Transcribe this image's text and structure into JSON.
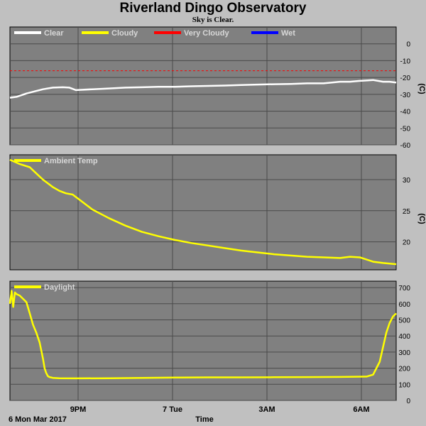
{
  "header": {
    "title": "Riverland Dingo Observatory",
    "subtitle": "Sky is Clear."
  },
  "footer": {
    "date_label": "6 Mon Mar 2017",
    "x_axis_title": "Time",
    "x_ticks": [
      "9PM",
      "7 Tue",
      "3AM",
      "6AM"
    ]
  },
  "colors": {
    "plot_background": "#808080",
    "page_background": "#c0c0c0",
    "grid": "#4a4a4a",
    "clear": "#ffffff",
    "cloudy": "#ffff00",
    "very_cloudy": "#ff0000",
    "wet": "#0000ff"
  },
  "chart_data": [
    {
      "type": "line",
      "name": "sky",
      "ylabel": "(C)",
      "ylim": [
        -60,
        10
      ],
      "y_ticks": [
        0,
        -10,
        -20,
        -30,
        -40,
        -50,
        -60
      ],
      "xlim": [
        0,
        11.7
      ],
      "legend": [
        {
          "label": "Clear",
          "color": "#ffffff"
        },
        {
          "label": "Cloudy",
          "color": "#ffff00"
        },
        {
          "label": "Very Cloudy",
          "color": "#ff0000"
        },
        {
          "label": "Wet",
          "color": "#0000ff"
        }
      ],
      "threshold": {
        "label": "Very Cloudy",
        "y": -16
      },
      "series": [
        {
          "name": "Clear",
          "color": "#ffffff",
          "x": [
            0,
            0.2,
            0.5,
            0.8,
            1.0,
            1.3,
            1.6,
            1.8,
            2.0,
            2.5,
            3.0,
            3.5,
            4.0,
            4.5,
            5.0,
            5.5,
            6.0,
            6.5,
            7.0,
            7.5,
            8.0,
            8.5,
            9.0,
            9.5,
            10.0,
            10.3,
            10.6,
            11.0,
            11.3,
            11.5,
            11.7
          ],
          "y": [
            -32,
            -31.5,
            -29.5,
            -28,
            -27,
            -26,
            -25.8,
            -26,
            -27.5,
            -27,
            -26.5,
            -26,
            -25.8,
            -25.5,
            -25.5,
            -25.2,
            -25,
            -24.8,
            -24.5,
            -24.2,
            -24,
            -23.8,
            -23.5,
            -23.5,
            -22.5,
            -22.5,
            -22,
            -21.5,
            -22.5,
            -22.5,
            -23
          ]
        }
      ]
    },
    {
      "type": "line",
      "name": "ambient",
      "ylabel": "(C)",
      "ylim": [
        15.5,
        34
      ],
      "y_ticks": [
        20,
        25,
        30
      ],
      "xlim": [
        0,
        11.7
      ],
      "legend": [
        {
          "label": "Ambient Temp",
          "color": "#ffff00"
        }
      ],
      "series": [
        {
          "name": "Ambient Temp",
          "color": "#ffff00",
          "x": [
            0,
            0.3,
            0.6,
            0.8,
            1.0,
            1.3,
            1.5,
            1.7,
            1.9,
            2.1,
            2.5,
            3.0,
            3.5,
            4.0,
            4.5,
            5.0,
            5.5,
            6.0,
            6.5,
            7.0,
            7.5,
            8.0,
            8.5,
            9.0,
            9.5,
            10.0,
            10.3,
            10.6,
            11.0,
            11.3,
            11.7
          ],
          "y": [
            33.2,
            32.5,
            32,
            31,
            30,
            28.8,
            28.2,
            27.8,
            27.6,
            26.8,
            25.2,
            23.8,
            22.6,
            21.6,
            20.9,
            20.3,
            19.8,
            19.4,
            19.0,
            18.6,
            18.3,
            18.0,
            17.8,
            17.6,
            17.5,
            17.4,
            17.6,
            17.5,
            16.8,
            16.6,
            16.4
          ]
        }
      ]
    },
    {
      "type": "line",
      "name": "daylight",
      "ylim": [
        0,
        740
      ],
      "y_ticks": [
        0,
        100,
        200,
        300,
        400,
        500,
        600,
        700
      ],
      "xlim": [
        0,
        11.7
      ],
      "legend": [
        {
          "label": "Daylight",
          "color": "#ffff00"
        }
      ],
      "series": [
        {
          "name": "Daylight",
          "color": "#ffff00",
          "x": [
            0,
            0.05,
            0.1,
            0.15,
            0.2,
            0.3,
            0.4,
            0.5,
            0.6,
            0.7,
            0.8,
            0.9,
            1.0,
            1.05,
            1.1,
            1.15,
            1.2,
            1.3,
            1.5,
            2,
            3,
            4,
            5,
            6,
            7,
            8,
            9,
            10,
            10.8,
            11.0,
            11.2,
            11.4,
            11.5,
            11.6,
            11.7
          ],
          "y": [
            600,
            680,
            580,
            670,
            660,
            650,
            630,
            610,
            540,
            470,
            420,
            360,
            260,
            200,
            170,
            150,
            145,
            140,
            138,
            137,
            138,
            140,
            142,
            143,
            143,
            144,
            145,
            146,
            148,
            160,
            240,
            420,
            480,
            520,
            540
          ]
        }
      ]
    }
  ]
}
